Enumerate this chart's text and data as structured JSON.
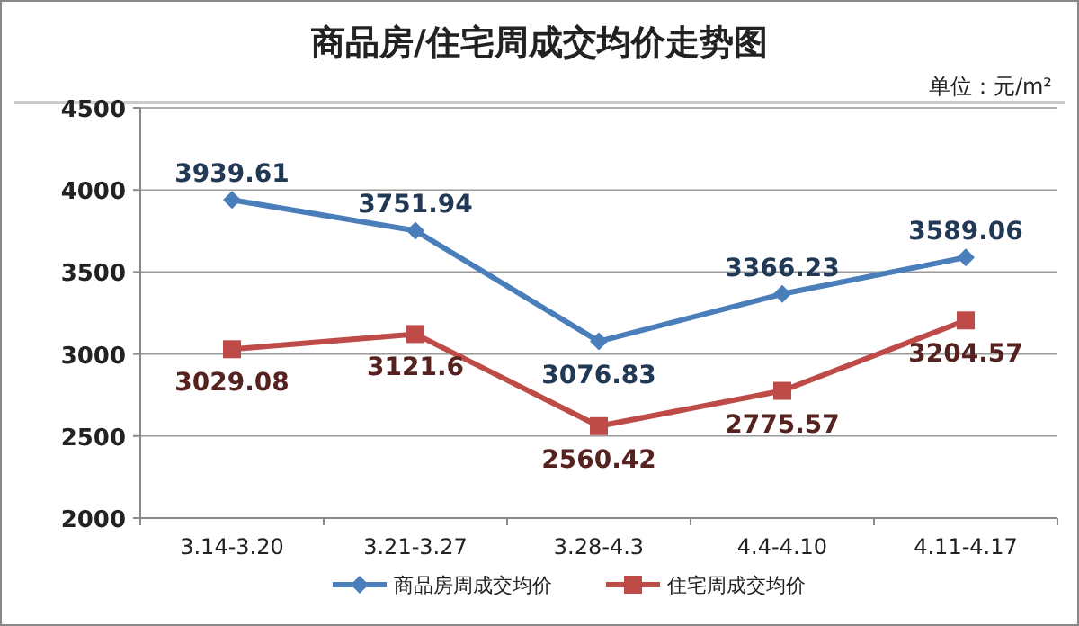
{
  "chart_data": {
    "type": "line",
    "title": "商品房/住宅周成交均价走势图",
    "subtitle": "单位：元/m²",
    "categories": [
      "3.14-3.20",
      "3.21-3.27",
      "3.28-4.3",
      "4.4-4.10",
      "4.11-4.17"
    ],
    "series": [
      {
        "name": "商品房周成交均价",
        "color": "#4a7ebb",
        "marker": "diamond",
        "values": [
          3939.61,
          3751.94,
          3076.83,
          3366.23,
          3589.06
        ]
      },
      {
        "name": "住宅周成交均价",
        "color": "#be4b48",
        "marker": "square",
        "values": [
          3029.08,
          3121.6,
          2560.42,
          2775.57,
          3204.57
        ]
      }
    ],
    "ylim": [
      2000,
      4500
    ],
    "yticks": [
      2000,
      2500,
      3000,
      3500,
      4000,
      4500
    ],
    "grid": "y",
    "legend": "bottom",
    "data_labels": true
  }
}
